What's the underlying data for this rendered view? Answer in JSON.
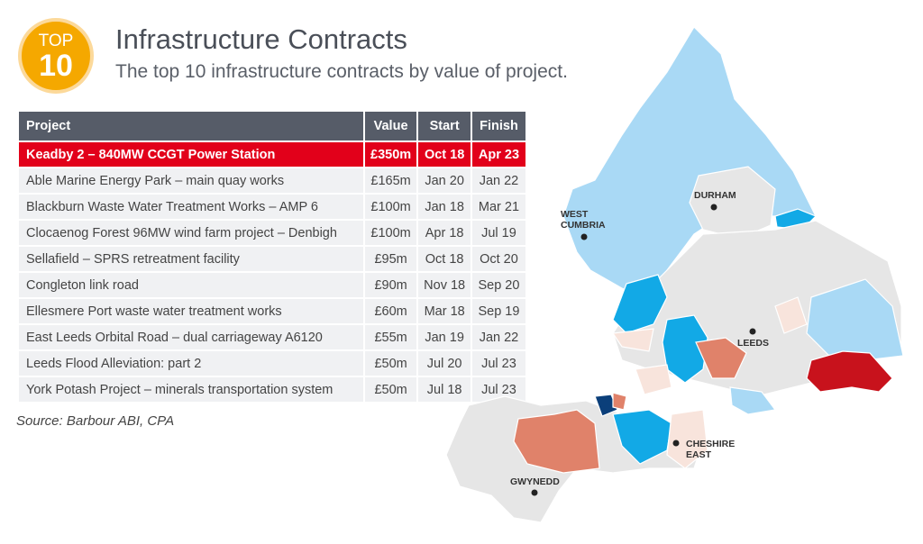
{
  "badge": {
    "top": "TOP",
    "num": "10"
  },
  "title": "Infrastructure Contracts",
  "subtitle": "The top 10 infrastructure contracts by value of project.",
  "table": {
    "headers": [
      "Project",
      "Value",
      "Start",
      "Finish"
    ],
    "rows": [
      [
        "Keadby 2 – 840MW CCGT Power Station",
        "£350m",
        "Oct 18",
        "Apr 23"
      ],
      [
        "Able Marine Energy Park – main quay works",
        "£165m",
        "Jan 20",
        "Jan 22"
      ],
      [
        "Blackburn Waste Water Treatment Works – AMP 6",
        "£100m",
        "Jan 18",
        "Mar 21"
      ],
      [
        "Clocaenog Forest 96MW wind farm project – Denbigh",
        "£100m",
        "Apr 18",
        "Jul 19"
      ],
      [
        "Sellafield – SPRS retreatment facility",
        "£95m",
        "Oct 18",
        "Oct 20"
      ],
      [
        "Congleton link road",
        "£90m",
        "Nov 18",
        "Sep 20"
      ],
      [
        "Ellesmere Port waste water treatment works",
        "£60m",
        "Mar 18",
        "Sep 19"
      ],
      [
        "East Leeds Orbital Road – dual carriageway A6120",
        "£55m",
        "Jan 19",
        "Jan 22"
      ],
      [
        "Leeds Flood Alleviation: part 2",
        "£50m",
        "Jul 20",
        "Jul 23"
      ],
      [
        "York Potash Project – minerals transportation system",
        "£50m",
        "Jul 18",
        "Jul 23"
      ]
    ]
  },
  "source": "Source: Barbour ABI, CPA",
  "map": {
    "labels": {
      "durham": "DURHAM",
      "west_cumbria_1": "WEST",
      "west_cumbria_2": "CUMBRIA",
      "leeds": "LEEDS",
      "cheshire_1": "CHESHIRE",
      "cheshire_2": "EAST",
      "gwynedd": "GWYNEDD"
    },
    "colors": {
      "light_blue": "#a9d9f5",
      "blue": "#12a9e6",
      "dark_blue": "#0b3f7a",
      "grey": "#e6e6e6",
      "red": "#c8121c",
      "salmon": "#e0826a",
      "pale": "#f8e4dc",
      "highlight": "#e2001a",
      "badge": "#f5a800"
    }
  }
}
